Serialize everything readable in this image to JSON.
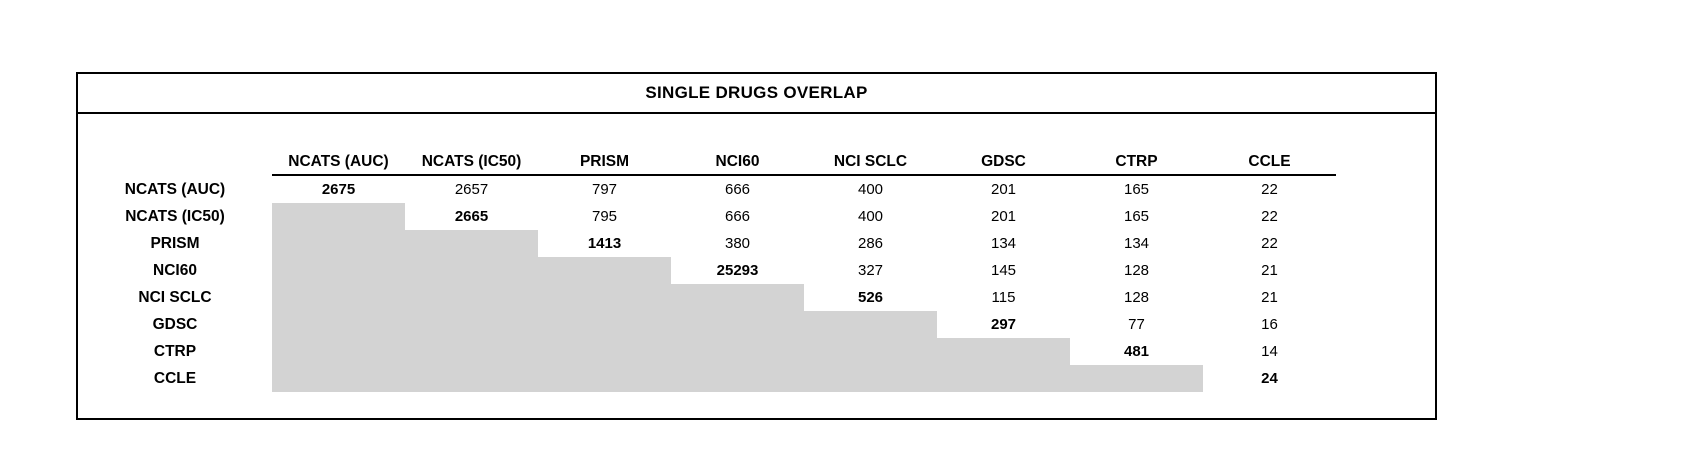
{
  "colors": {
    "mask_fill": "#d3d3d3",
    "border": "#000000"
  },
  "chart_data": {
    "type": "table",
    "title": "SINGLE DRUGS OVERLAP",
    "columns": [
      "NCATS (AUC)",
      "NCATS (IC50)",
      "PRISM",
      "NCI60",
      "NCI SCLC",
      "GDSC",
      "CTRP",
      "CCLE"
    ],
    "rows": [
      {
        "label": "NCATS (AUC)",
        "values": [
          2675,
          2657,
          797,
          666,
          400,
          201,
          165,
          22
        ]
      },
      {
        "label": "NCATS (IC50)",
        "values": [
          null,
          2665,
          795,
          666,
          400,
          201,
          165,
          22
        ]
      },
      {
        "label": "PRISM",
        "values": [
          null,
          null,
          1413,
          380,
          286,
          134,
          134,
          22
        ]
      },
      {
        "label": "NCI60",
        "values": [
          null,
          null,
          null,
          25293,
          327,
          145,
          128,
          21
        ]
      },
      {
        "label": "NCI SCLC",
        "values": [
          null,
          null,
          null,
          null,
          526,
          115,
          128,
          21
        ]
      },
      {
        "label": "GDSC",
        "values": [
          null,
          null,
          null,
          null,
          null,
          297,
          77,
          16
        ]
      },
      {
        "label": "CTRP",
        "values": [
          null,
          null,
          null,
          null,
          null,
          null,
          481,
          14
        ]
      },
      {
        "label": "CCLE",
        "values": [
          null,
          null,
          null,
          null,
          null,
          null,
          null,
          24
        ]
      }
    ],
    "layout_hints": {
      "diagonal_values_bold": true,
      "lower_triangle_masked_gray": true,
      "header_underline": true
    }
  }
}
